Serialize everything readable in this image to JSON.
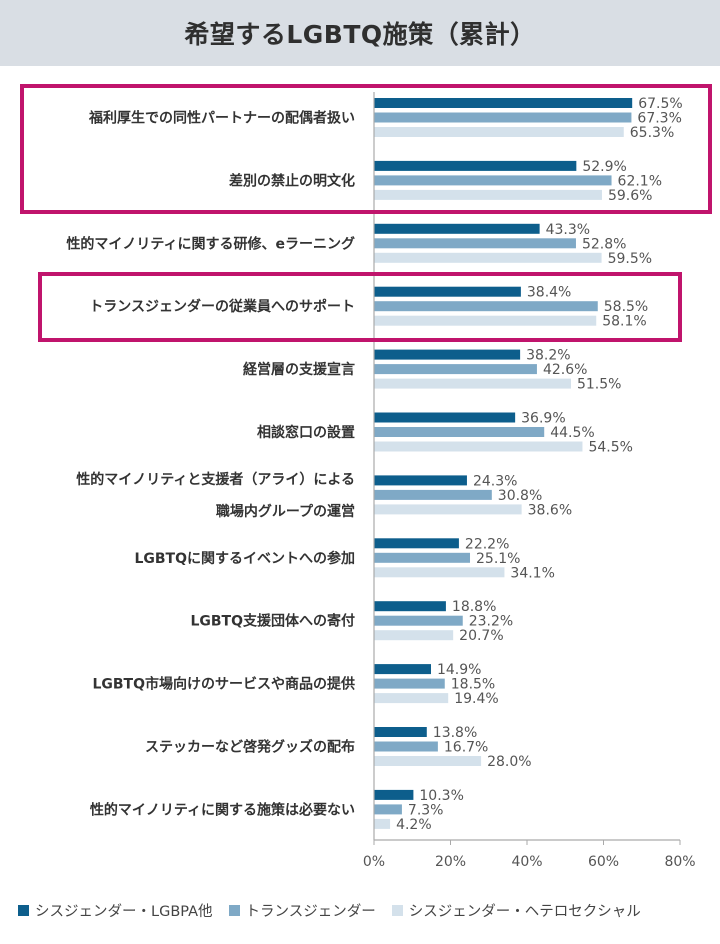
{
  "title": "希望するLGBTQ施策（累計）",
  "colors": {
    "series1": "#0d5e8c",
    "series2": "#7fa9c6",
    "series3": "#d4e1eb",
    "highlight": "#c0146c",
    "axis": "#aaaaaa"
  },
  "chart_data": {
    "type": "bar",
    "orientation": "horizontal",
    "categories": [
      "福利厚生での同性パートナーの配偶者扱い",
      "差別の禁止の明文化",
      "性的マイノリティに関する研修、eラーニング",
      "トランスジェンダーの従業員へのサポート",
      "経営層の支援宣言",
      "相談窓口の設置",
      "性的マイノリティと支援者（アライ）による職場内グループの運営",
      "LGBTQに関するイベントへの参加",
      "LGBTQ支援団体への寄付",
      "LGBTQ市場向けのサービスや商品の提供",
      "ステッカーなど啓発グッズの配布",
      "性的マイノリティに関する施策は必要ない"
    ],
    "category_lines": [
      [
        "福利厚生での同性パートナーの配偶者扱い"
      ],
      [
        "差別の禁止の明文化"
      ],
      [
        "性的マイノリティに関する研修、eラーニング"
      ],
      [
        "トランスジェンダーの従業員へのサポート"
      ],
      [
        "経営層の支援宣言"
      ],
      [
        "相談窓口の設置"
      ],
      [
        "性的マイノリティと支援者（アライ）による",
        "職場内グループの運営"
      ],
      [
        "LGBTQに関するイベントへの参加"
      ],
      [
        "LGBTQ支援団体への寄付"
      ],
      [
        "LGBTQ市場向けのサービスや商品の提供"
      ],
      [
        "ステッカーなど啓発グッズの配布"
      ],
      [
        "性的マイノリティに関する施策は必要ない"
      ]
    ],
    "series": [
      {
        "name": "シスジェンダー・LGBPA他",
        "values": [
          67.5,
          52.9,
          43.3,
          38.4,
          38.2,
          36.9,
          24.3,
          22.2,
          18.8,
          14.9,
          13.8,
          10.3
        ]
      },
      {
        "name": "トランスジェンダー",
        "values": [
          67.3,
          62.1,
          52.8,
          58.5,
          42.6,
          44.5,
          30.8,
          25.1,
          23.2,
          18.5,
          16.7,
          7.3
        ]
      },
      {
        "name": "シスジェンダー・ヘテロセクシャル",
        "values": [
          65.3,
          59.6,
          59.5,
          58.1,
          51.5,
          54.5,
          38.6,
          34.1,
          20.7,
          19.4,
          28.0,
          4.2
        ]
      }
    ],
    "x_ticks": [
      "0%",
      "20%",
      "40%",
      "60%",
      "80%"
    ],
    "xlim": [
      0,
      80
    ],
    "value_suffix": "%",
    "highlighted_groups": [
      [
        0,
        1
      ],
      [
        3
      ]
    ],
    "grid": false,
    "legend_position": "bottom"
  }
}
